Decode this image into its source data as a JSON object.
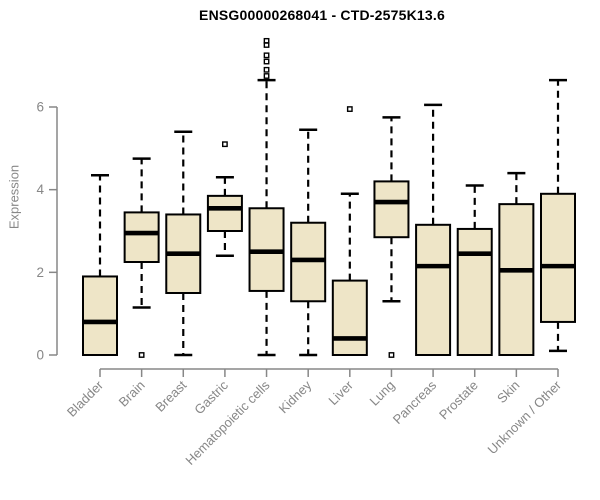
{
  "figure": {
    "title": "ENSG00000268041 - CTD-2575K13.6",
    "ylabel": "Expression"
  },
  "chart_data": {
    "type": "boxplot",
    "title": "ENSG00000268041 - CTD-2575K13.6",
    "xlabel": "",
    "ylabel": "Expression",
    "ylim": [
      0,
      6
    ],
    "yticks": [
      0,
      2,
      4,
      6
    ],
    "grid": false,
    "legend": null,
    "categories": [
      "Bladder",
      "Brain",
      "Breast",
      "Gastric",
      "Hematopoietic cells",
      "Kidney",
      "Liver",
      "Lung",
      "Pancreas",
      "Prostate",
      "Skin",
      "Unknown / Other"
    ],
    "boxes": [
      {
        "category": "Bladder",
        "whisker_low": 0,
        "q1": 0,
        "median": 0.8,
        "q3": 1.9,
        "whisker_high": 4.35,
        "outliers": []
      },
      {
        "category": "Brain",
        "whisker_low": 1.15,
        "q1": 2.25,
        "median": 2.95,
        "q3": 3.45,
        "whisker_high": 4.75,
        "outliers": [
          0
        ]
      },
      {
        "category": "Breast",
        "whisker_low": 0,
        "q1": 1.5,
        "median": 2.45,
        "q3": 3.4,
        "whisker_high": 5.4,
        "outliers": []
      },
      {
        "category": "Gastric",
        "whisker_low": 2.4,
        "q1": 3.0,
        "median": 3.55,
        "q3": 3.85,
        "whisker_high": 4.3,
        "outliers": [
          5.1
        ]
      },
      {
        "category": "Hematopoietic cells",
        "whisker_low": 0,
        "q1": 1.55,
        "median": 2.5,
        "q3": 3.55,
        "whisker_high": 6.65,
        "outliers": [
          6.75,
          6.9,
          7.1,
          7.25,
          7.5,
          7.6
        ]
      },
      {
        "category": "Kidney",
        "whisker_low": 0,
        "q1": 1.3,
        "median": 2.3,
        "q3": 3.2,
        "whisker_high": 5.45,
        "outliers": []
      },
      {
        "category": "Liver",
        "whisker_low": 0,
        "q1": 0,
        "median": 0.4,
        "q3": 1.8,
        "whisker_high": 3.9,
        "outliers": [
          5.95
        ]
      },
      {
        "category": "Lung",
        "whisker_low": 1.3,
        "q1": 2.85,
        "median": 3.7,
        "q3": 4.2,
        "whisker_high": 5.75,
        "outliers": [
          0
        ]
      },
      {
        "category": "Pancreas",
        "whisker_low": 0,
        "q1": 0,
        "median": 2.15,
        "q3": 3.15,
        "whisker_high": 6.05,
        "outliers": []
      },
      {
        "category": "Prostate",
        "whisker_low": 0,
        "q1": 0,
        "median": 2.45,
        "q3": 3.05,
        "whisker_high": 4.1,
        "outliers": []
      },
      {
        "category": "Skin",
        "whisker_low": 0,
        "q1": 0,
        "median": 2.05,
        "q3": 3.65,
        "whisker_high": 4.4,
        "outliers": []
      },
      {
        "category": "Unknown / Other",
        "whisker_low": 0.1,
        "q1": 0.8,
        "median": 2.15,
        "q3": 3.9,
        "whisker_high": 6.65,
        "outliers": []
      }
    ],
    "colors": {
      "box_fill": "#EEE5C7",
      "box_stroke": "#000000",
      "median": "#000000",
      "whisker": "#000000",
      "axis": "#878787",
      "tick_label": "#878787",
      "title": "#000000"
    }
  }
}
